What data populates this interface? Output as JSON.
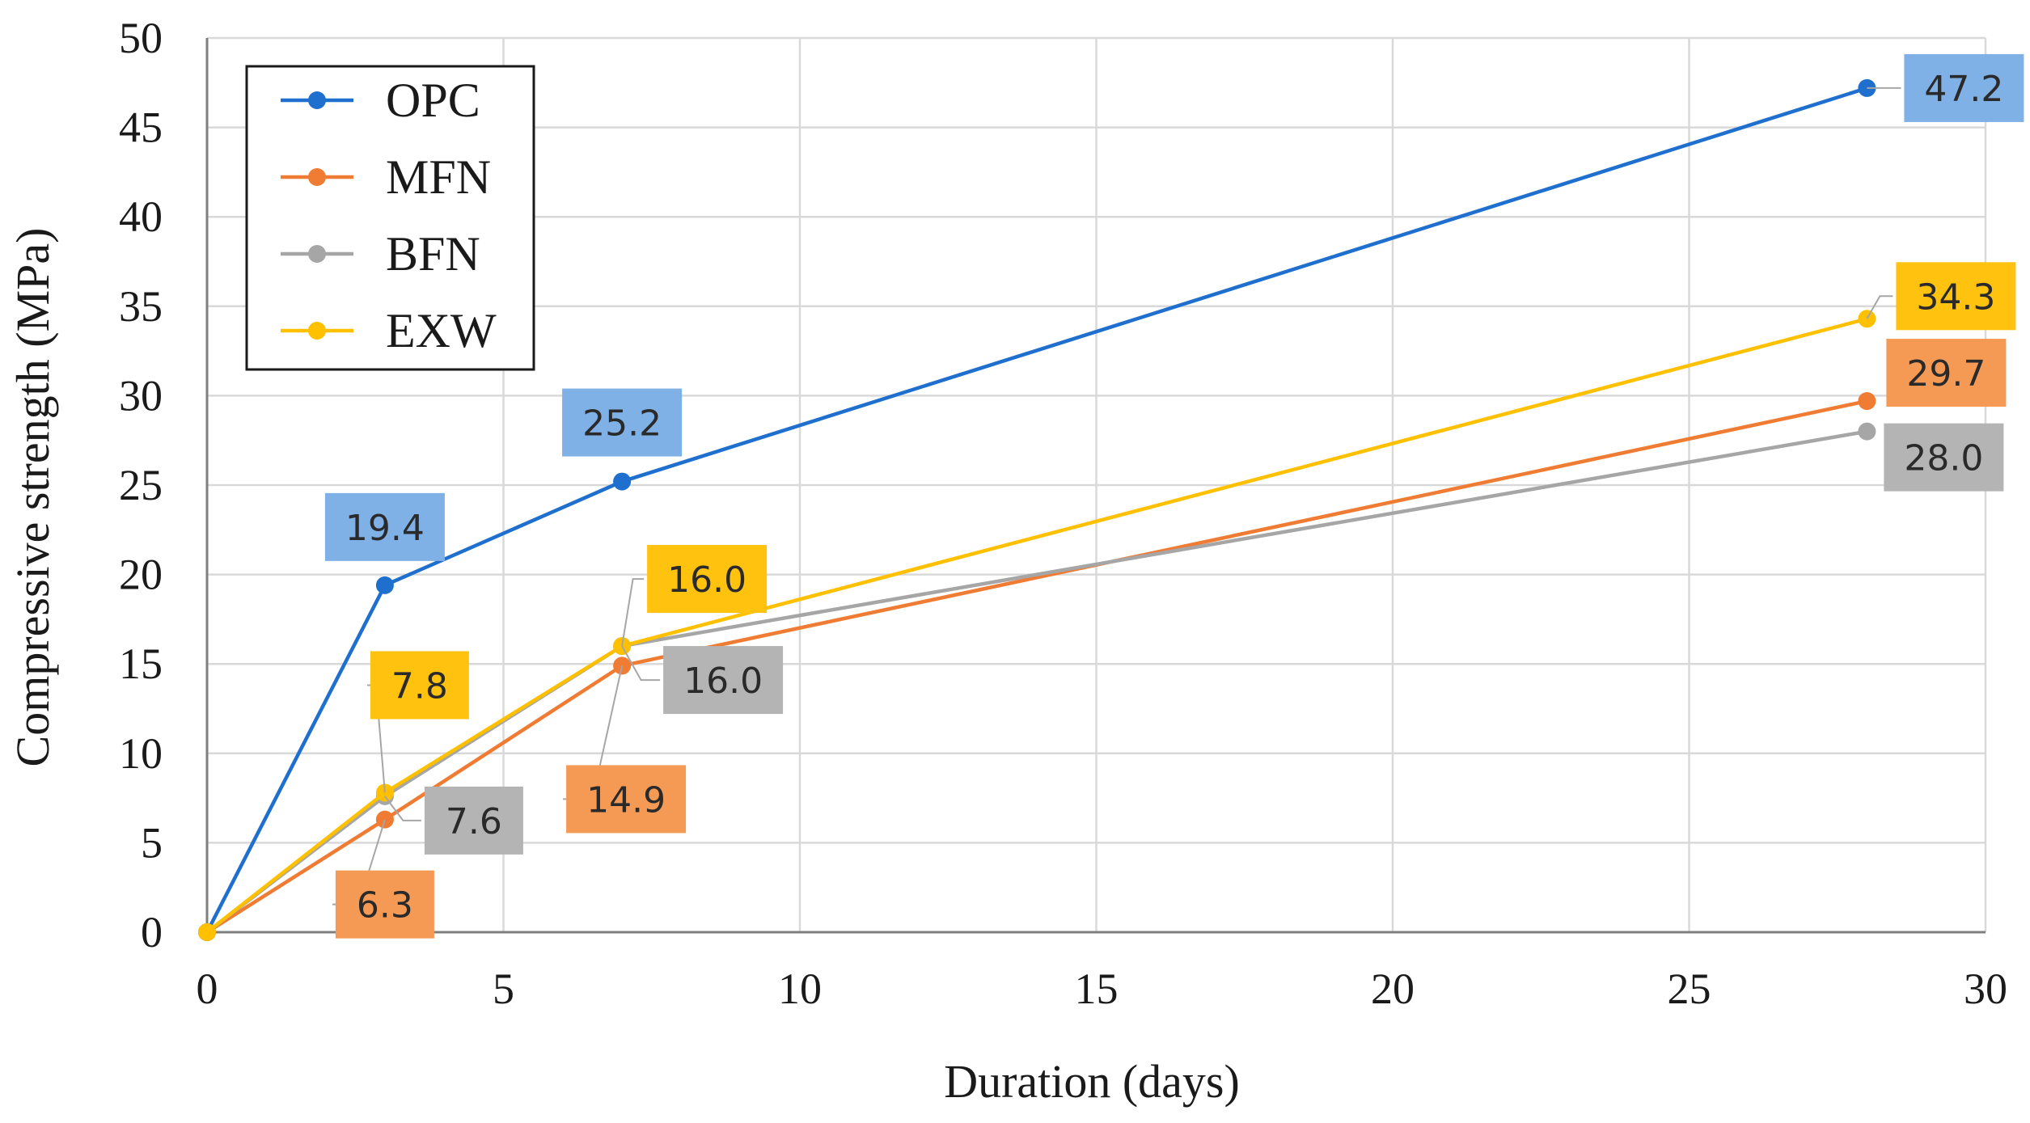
{
  "chart_data": {
    "type": "line",
    "title": "",
    "xlabel": "Duration (days)",
    "ylabel": "Compressive strength (MPa)",
    "xlim": [
      0,
      30
    ],
    "ylim": [
      0,
      50
    ],
    "xticks": [
      0,
      5,
      10,
      15,
      20,
      25,
      30
    ],
    "yticks": [
      0,
      5,
      10,
      15,
      20,
      25,
      30,
      35,
      40,
      45,
      50
    ],
    "grid": true,
    "legend_position": "top-left",
    "series": [
      {
        "name": "OPC",
        "color": "#1f6fcf",
        "label_bg": "#7fb0e6",
        "label_fg": "#2a2a2a",
        "x": [
          0,
          3,
          7,
          28
        ],
        "y": [
          0,
          19.4,
          25.2,
          47.2
        ],
        "labels": [
          null,
          "19.4",
          "25.2",
          "47.2"
        ]
      },
      {
        "name": "MFN",
        "color": "#f07b32",
        "label_bg": "#f59a55",
        "label_fg": "#2a2a2a",
        "x": [
          0,
          3,
          7,
          28
        ],
        "y": [
          0,
          6.3,
          14.9,
          29.7
        ],
        "labels": [
          null,
          "6.3",
          "14.9",
          "29.7"
        ]
      },
      {
        "name": "BFN",
        "color": "#a6a6a6",
        "label_bg": "#b4b4b4",
        "label_fg": "#2a2a2a",
        "x": [
          0,
          3,
          7,
          28
        ],
        "y": [
          0,
          7.6,
          16.0,
          28.0
        ],
        "labels": [
          null,
          "7.6",
          "16.0",
          "28.0"
        ]
      },
      {
        "name": "EXW",
        "color": "#ffc000",
        "label_bg": "#ffc20e",
        "label_fg": "#2a2a2a",
        "x": [
          0,
          3,
          7,
          28
        ],
        "y": [
          0,
          7.8,
          16.0,
          34.3
        ],
        "labels": [
          null,
          "7.8",
          "16.0",
          "34.3"
        ]
      }
    ]
  }
}
